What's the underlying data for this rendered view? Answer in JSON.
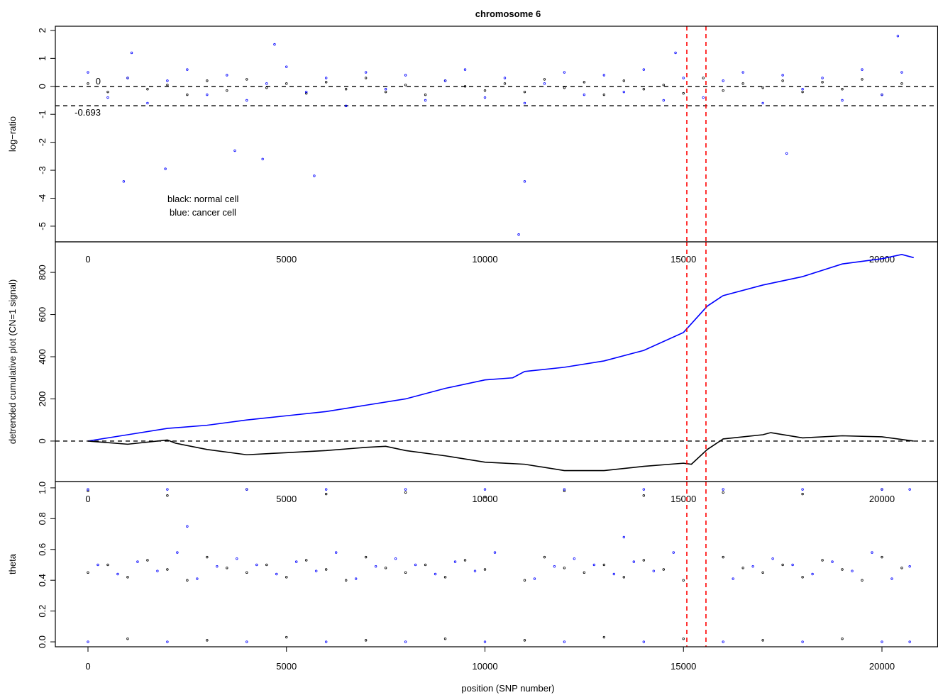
{
  "chart_data": [
    {
      "type": "scatter",
      "title": "chromosome 6",
      "ylabel": "log−ratio",
      "xlim": [
        -822,
        21412
      ],
      "xticks": [
        0,
        5000,
        10000,
        15000,
        20000
      ],
      "ylim": [
        -5.56,
        2.15
      ],
      "yticks": [
        -5,
        -4,
        -3,
        -2,
        -1,
        0,
        1,
        2
      ],
      "hlines": [
        0,
        -0.693
      ],
      "vlines": [
        15085,
        15567
      ],
      "series": [
        {
          "name": "black: normal cell",
          "color": "#000000",
          "x": [
            0,
            500,
            1000,
            1500,
            2000,
            2500,
            3000,
            3500,
            4000,
            4500,
            5000,
            5500,
            6000,
            6500,
            7000,
            7500,
            8000,
            8500,
            9000,
            9500,
            10000,
            10500,
            11000,
            11500,
            12000,
            12500,
            13000,
            13500,
            14000,
            14500,
            15000,
            15500,
            16000,
            16500,
            17000,
            17500,
            18000,
            18500,
            19000,
            19500,
            20000,
            20500
          ],
          "values": [
            0.1,
            -0.2,
            0.3,
            -0.1,
            0.05,
            -0.3,
            0.2,
            -0.15,
            0.25,
            -0.05,
            0.1,
            -0.25,
            0.15,
            -0.1,
            0.3,
            -0.2,
            0.05,
            -0.3,
            0.2,
            0.0,
            -0.15,
            0.1,
            -0.2,
            0.25,
            -0.05,
            0.15,
            -0.3,
            0.2,
            -0.1,
            0.05,
            -0.25,
            0.3,
            -0.15,
            0.1,
            -0.05,
            0.2,
            -0.2,
            0.15,
            -0.1,
            0.25,
            -0.3,
            0.1
          ]
        },
        {
          "name": "blue: cancer cell",
          "color": "#0000ff",
          "x": [
            0,
            500,
            1000,
            1500,
            2000,
            2500,
            3000,
            3500,
            4000,
            4500,
            5000,
            5500,
            6000,
            6500,
            7000,
            7500,
            8000,
            8500,
            9000,
            9500,
            10000,
            10500,
            11000,
            11500,
            12000,
            12500,
            13000,
            13500,
            14000,
            14500,
            15000,
            15500,
            16000,
            16500,
            17000,
            17500,
            18000,
            18500,
            19000,
            19500,
            20000,
            20500,
            900,
            1950,
            3700,
            4400,
            4700,
            5700,
            10850,
            11000,
            17600,
            1100,
            14800,
            20400
          ],
          "values": [
            0.5,
            -0.4,
            0.3,
            -0.6,
            0.2,
            0.6,
            -0.3,
            0.4,
            -0.5,
            0.1,
            0.7,
            -0.2,
            0.3,
            -0.7,
            0.5,
            -0.1,
            0.4,
            -0.5,
            0.2,
            0.6,
            -0.4,
            0.3,
            -0.6,
            0.1,
            0.5,
            -0.3,
            0.4,
            -0.2,
            0.6,
            -0.5,
            0.3,
            -0.4,
            0.2,
            0.5,
            -0.6,
            0.4,
            -0.1,
            0.3,
            -0.5,
            0.6,
            -0.3,
            0.5,
            -3.4,
            -2.95,
            -2.3,
            -2.6,
            1.5,
            -3.2,
            -5.3,
            -3.4,
            -2.4,
            1.2,
            1.2,
            1.8
          ]
        }
      ]
    },
    {
      "type": "line",
      "ylabel": "detrended cumulative plot (CN=1 signal)",
      "xlim": [
        -822,
        21412
      ],
      "xticks": [
        0,
        5000,
        10000,
        15000,
        20000
      ],
      "ylim": [
        -192,
        945
      ],
      "yticks": [
        0,
        200,
        400,
        600,
        800
      ],
      "hlines": [
        0
      ],
      "vlines": [
        15085,
        15567
      ],
      "series": [
        {
          "color": "#0000ff",
          "x": [
            0,
            1000,
            2000,
            3000,
            4000,
            5000,
            6000,
            7000,
            8000,
            9000,
            10000,
            10700,
            11000,
            12000,
            13000,
            14000,
            15000,
            15600,
            16000,
            17000,
            18000,
            19000,
            20000,
            20500,
            20800
          ],
          "values": [
            0,
            30,
            60,
            75,
            100,
            120,
            140,
            170,
            200,
            250,
            290,
            300,
            330,
            350,
            380,
            430,
            515,
            640,
            690,
            740,
            780,
            840,
            865,
            885,
            870
          ]
        },
        {
          "color": "#000000",
          "x": [
            0,
            1000,
            2000,
            2200,
            3000,
            4000,
            5000,
            6000,
            7000,
            7500,
            8000,
            9000,
            10000,
            11000,
            12000,
            13000,
            14000,
            15000,
            15200,
            15600,
            16000,
            17000,
            17200,
            18000,
            19000,
            20000,
            20800
          ],
          "values": [
            0,
            -15,
            5,
            -10,
            -40,
            -65,
            -55,
            -45,
            -30,
            -25,
            -45,
            -70,
            -100,
            -110,
            -140,
            -140,
            -120,
            -105,
            -110,
            -40,
            10,
            30,
            40,
            15,
            25,
            20,
            0
          ]
        }
      ]
    },
    {
      "type": "scatter",
      "ylabel": "theta",
      "xlabel": "position (SNP number)",
      "xlim": [
        -822,
        21412
      ],
      "xticks": [
        0,
        5000,
        10000,
        15000,
        20000
      ],
      "ylim": [
        -0.032,
        1.041
      ],
      "yticks": [
        {
          "value": 0,
          "label": "0.0"
        },
        0.2,
        0.4,
        0.6,
        0.8,
        {
          "value": 1,
          "label": "1.0"
        }
      ],
      "vlines": [
        15085,
        15567
      ],
      "series": [
        {
          "color": "#000000",
          "x": [
            0,
            500,
            1000,
            1500,
            2000,
            2500,
            3000,
            3500,
            4000,
            4500,
            5000,
            5500,
            6000,
            6500,
            7000,
            7500,
            8000,
            8500,
            9000,
            9500,
            10000,
            11000,
            11500,
            12000,
            12500,
            13000,
            13500,
            14000,
            14500,
            15000,
            16000,
            16500,
            17000,
            17500,
            18000,
            18500,
            19000,
            19500,
            20000,
            20500,
            0,
            2000,
            4000,
            6000,
            8000,
            10000,
            12000,
            14000,
            16000,
            18000,
            20000,
            1000,
            3000,
            5000,
            7000,
            9000,
            11000,
            13000,
            15000,
            17000,
            19000
          ],
          "values": [
            0.45,
            0.5,
            0.42,
            0.53,
            0.47,
            0.4,
            0.55,
            0.48,
            0.45,
            0.5,
            0.42,
            0.53,
            0.47,
            0.4,
            0.55,
            0.48,
            0.45,
            0.5,
            0.42,
            0.53,
            0.47,
            0.4,
            0.55,
            0.48,
            0.45,
            0.5,
            0.42,
            0.53,
            0.47,
            0.4,
            0.55,
            0.48,
            0.45,
            0.5,
            0.42,
            0.53,
            0.47,
            0.4,
            0.55,
            0.48,
            0.98,
            0.95,
            0.99,
            0.96,
            0.97,
            0.94,
            0.98,
            0.95,
            0.97,
            0.96,
            0.99,
            0.02,
            0.01,
            0.03,
            0.01,
            0.02,
            0.01,
            0.03,
            0.02,
            0.01,
            0.02
          ]
        },
        {
          "color": "#0000ff",
          "x": [
            250,
            750,
            1250,
            1750,
            2250,
            2750,
            3250,
            3750,
            4250,
            4750,
            5250,
            5750,
            6250,
            6750,
            7250,
            7750,
            8250,
            8750,
            9250,
            9750,
            10250,
            11250,
            11750,
            12250,
            12750,
            13250,
            13750,
            14250,
            14750,
            16250,
            16750,
            17250,
            17750,
            18250,
            18750,
            19250,
            19750,
            20250,
            20700,
            0,
            2000,
            4000,
            6000,
            8000,
            10000,
            12000,
            14000,
            16000,
            18000,
            20000,
            20700,
            0,
            2000,
            4000,
            6000,
            8000,
            10000,
            12000,
            14000,
            16000,
            18000,
            20000,
            20700,
            2500,
            13500
          ],
          "values": [
            0.5,
            0.44,
            0.52,
            0.46,
            0.58,
            0.41,
            0.49,
            0.54,
            0.5,
            0.44,
            0.52,
            0.46,
            0.58,
            0.41,
            0.49,
            0.54,
            0.5,
            0.44,
            0.52,
            0.46,
            0.58,
            0.41,
            0.49,
            0.54,
            0.5,
            0.44,
            0.52,
            0.46,
            0.58,
            0.41,
            0.49,
            0.54,
            0.5,
            0.44,
            0.52,
            0.46,
            0.58,
            0.41,
            0.49,
            0.99,
            0.99,
            0.99,
            0.99,
            0.99,
            0.99,
            0.99,
            0.99,
            0.99,
            0.99,
            0.99,
            0.99,
            0.0,
            0.0,
            0.0,
            0.0,
            0.0,
            0.0,
            0.0,
            0.0,
            0.0,
            0.0,
            0.0,
            0.0,
            0.75,
            0.68
          ]
        }
      ]
    }
  ]
}
